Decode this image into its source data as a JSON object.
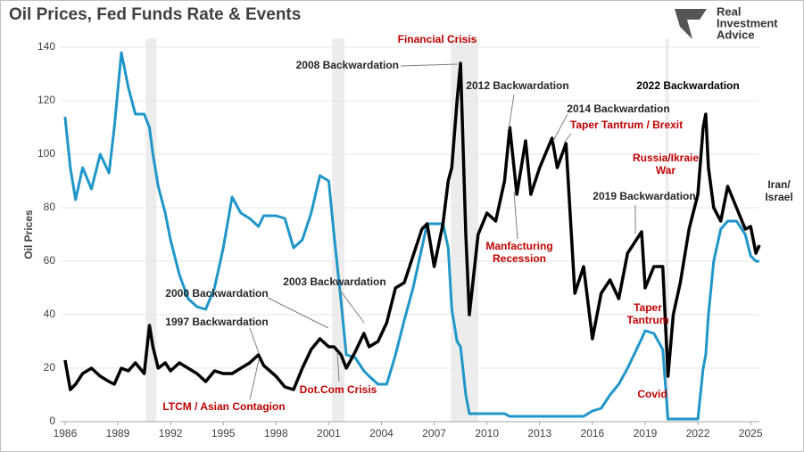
{
  "chart_data": {
    "type": "line",
    "title": "Oil Prices, Fed Funds Rate & Events",
    "y_label": "Oil Prices",
    "logo_lines": [
      "Real",
      "Investment",
      "Advice"
    ],
    "xlim": [
      1985.75,
      2025.5
    ],
    "xticks": [
      1986,
      1989,
      1992,
      1995,
      1998,
      2001,
      2004,
      2007,
      2010,
      2013,
      2016,
      2019,
      2022,
      2025
    ],
    "ylim": [
      0,
      140
    ],
    "yticks": [
      0,
      20,
      40,
      60,
      80,
      100,
      120,
      140
    ],
    "grid": true,
    "shaded": [
      [
        1990.6,
        1991.2
      ],
      [
        2001.2,
        2001.9
      ],
      [
        2007.95,
        2009.5
      ],
      [
        2020.15,
        2020.35
      ]
    ],
    "shade_color": "#ececec",
    "x": [
      1986.0,
      1986.3,
      1986.6,
      1987.0,
      1987.5,
      1988.0,
      1988.5,
      1988.8,
      1989.2,
      1989.6,
      1990.0,
      1990.5,
      1990.8,
      1991.0,
      1991.3,
      1991.7,
      1992.0,
      1992.5,
      1993.0,
      1993.5,
      1994.0,
      1994.5,
      1995.0,
      1995.5,
      1996.0,
      1996.5,
      1997.0,
      1997.3,
      1998.0,
      1998.5,
      1999.0,
      1999.5,
      2000.0,
      2000.5,
      2001.0,
      2001.3,
      2001.7,
      2002.0,
      2002.5,
      2003.0,
      2003.3,
      2003.8,
      2004.3,
      2004.8,
      2005.3,
      2005.8,
      2006.3,
      2006.6,
      2007.0,
      2007.5,
      2007.8,
      2008.0,
      2008.3,
      2008.5,
      2008.8,
      2009.0,
      2009.5,
      2010.0,
      2010.5,
      2011.0,
      2011.3,
      2011.7,
      2012.2,
      2012.5,
      2013.0,
      2013.7,
      2014.0,
      2014.5,
      2015.0,
      2015.5,
      2016.0,
      2016.5,
      2017.0,
      2017.5,
      2018.0,
      2018.8,
      2019.0,
      2019.5,
      2020.0,
      2020.3,
      2020.6,
      2021.0,
      2021.5,
      2022.0,
      2022.3,
      2022.45,
      2022.6,
      2022.9,
      2023.3,
      2023.7,
      2024.2,
      2024.7,
      2025.0,
      2025.3,
      2025.5
    ],
    "series": [
      {
        "color": "#000000",
        "width": 3.5,
        "values": [
          23,
          12,
          14,
          18,
          20,
          17,
          15,
          14,
          20,
          19,
          22,
          18,
          36,
          28,
          20,
          22,
          19,
          22,
          20,
          18,
          15,
          19,
          18,
          18,
          20,
          22,
          25,
          21,
          17,
          13,
          12,
          20,
          27,
          31,
          28,
          28,
          25,
          20,
          26,
          33,
          28,
          30,
          37,
          50,
          52,
          62,
          72,
          74,
          58,
          74,
          90,
          95,
          120,
          134,
          70,
          40,
          70,
          78,
          75,
          90,
          110,
          85,
          105,
          85,
          95,
          106,
          95,
          104,
          48,
          58,
          31,
          48,
          53,
          46,
          63,
          71,
          50,
          58,
          58,
          17,
          40,
          52,
          72,
          85,
          110,
          115,
          95,
          80,
          75,
          88,
          80,
          72,
          73,
          63,
          66
        ]
      },
      {
        "color": "#1f96c8",
        "width": 3,
        "values": [
          114,
          95,
          83,
          95,
          87,
          100,
          93,
          110,
          138,
          125,
          115,
          115,
          110,
          100,
          88,
          78,
          68,
          55,
          46,
          43,
          42,
          50,
          65,
          84,
          78,
          76,
          73,
          77,
          77,
          76,
          65,
          68,
          78,
          92,
          90,
          70,
          45,
          25,
          24,
          19,
          17,
          14,
          14,
          25,
          38,
          50,
          65,
          74,
          74,
          74,
          65,
          42,
          30,
          28,
          10,
          3,
          3,
          3,
          3,
          3,
          2,
          2,
          2,
          2,
          2,
          2,
          2,
          2,
          2,
          2,
          4,
          5,
          10,
          14,
          20,
          31,
          34,
          33,
          27,
          1,
          1,
          1,
          1,
          1,
          20,
          25,
          40,
          60,
          72,
          75,
          75,
          70,
          62,
          60,
          60
        ]
      }
    ],
    "annotations": [
      {
        "lines": [
          "Financial Crisis"
        ],
        "color": "#c00000"
      },
      {
        "lines": [
          "2008 Backwardation"
        ],
        "color": "#262626"
      },
      {
        "lines": [
          "2012 Backwardation"
        ],
        "color": "#262626"
      },
      {
        "lines": [
          "2014 Backwardation"
        ],
        "color": "#262626"
      },
      {
        "lines": [
          "Taper Tantrum / Brexit"
        ],
        "color": "#c00000"
      },
      {
        "lines": [
          "2022 Backwardation"
        ],
        "color": "#000000"
      },
      {
        "lines": [
          "Russia/Ikraie",
          "War"
        ],
        "color": "#c00000"
      },
      {
        "lines": [
          "Iran/",
          "Israel"
        ],
        "color": "#262626"
      },
      {
        "lines": [
          "2019 Backwardation"
        ],
        "color": "#262626"
      },
      {
        "lines": [
          "Manfacturing",
          "Recession"
        ],
        "color": "#c00000"
      },
      {
        "lines": [
          "2000 Backwardation"
        ],
        "color": "#262626"
      },
      {
        "lines": [
          "2003 Backwardation"
        ],
        "color": "#262626"
      },
      {
        "lines": [
          "1997 Backwardation"
        ],
        "color": "#262626"
      },
      {
        "lines": [
          "Taper",
          "Tantrum"
        ],
        "color": "#c00000"
      },
      {
        "lines": [
          "LTCM / Asian Contagion"
        ],
        "color": "#c00000"
      },
      {
        "lines": [
          "Dot.Com Crisis"
        ],
        "color": "#c00000"
      },
      {
        "lines": [
          "Covid"
        ],
        "color": "#c00000"
      }
    ]
  }
}
